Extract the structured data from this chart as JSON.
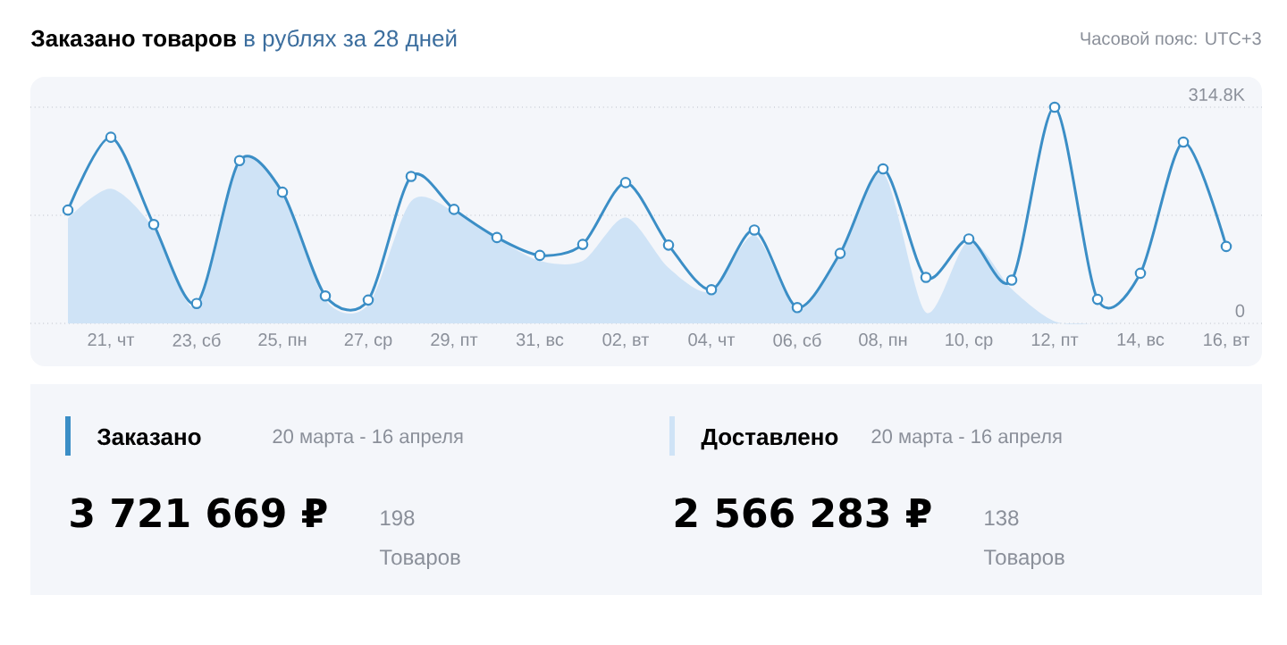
{
  "chart_data": {
    "type": "line",
    "title": "Заказано товаров",
    "subtitle": "в рублях за 28 дней",
    "categories": [
      null,
      "21, чт",
      null,
      "23, сб",
      null,
      "25, пн",
      null,
      "27, ср",
      null,
      "29, пт",
      null,
      "31, вс",
      null,
      "02, вт",
      null,
      "04, чт",
      null,
      "06, сб",
      null,
      "08, пн",
      null,
      "10, ср",
      null,
      "12, пт",
      null,
      "14, вс",
      null,
      "16, вт"
    ],
    "series": [
      {
        "name": "Доставлено",
        "type": "area",
        "color": "#cfe3f6",
        "values": [
          153,
          196,
          138,
          24,
          235,
          190,
          34,
          27,
          178,
          163,
          124,
          91,
          91,
          154,
          81,
          46,
          128,
          20,
          98,
          219,
          16,
          120,
          50,
          3,
          0,
          0,
          0,
          0
        ]
      },
      {
        "name": "Заказано",
        "color": "#3b8ec6",
        "marker": "circle",
        "values": [
          165,
          271,
          144,
          29,
          237,
          191,
          40,
          34,
          214,
          166,
          125,
          99,
          115,
          205,
          114,
          49,
          136,
          23,
          102,
          225,
          67,
          123,
          63,
          314.8,
          35,
          73,
          264,
          112
        ]
      }
    ],
    "ylim": [
      0,
      314.8
    ],
    "yticks": [
      0,
      {
        "value": 157.4,
        "label": null
      },
      {
        "value": 314.8,
        "label": "314.8K"
      }
    ],
    "grid": "y",
    "legend": "bottom",
    "annotations": [
      "Часовой пояс: UTC+3",
      "20 марта - 16 апреля",
      "3 721 669 ₽",
      "198",
      "Товаров",
      "20 марта - 16 апреля",
      "2 566 283 ₽",
      "138",
      "Товаров"
    ]
  }
}
